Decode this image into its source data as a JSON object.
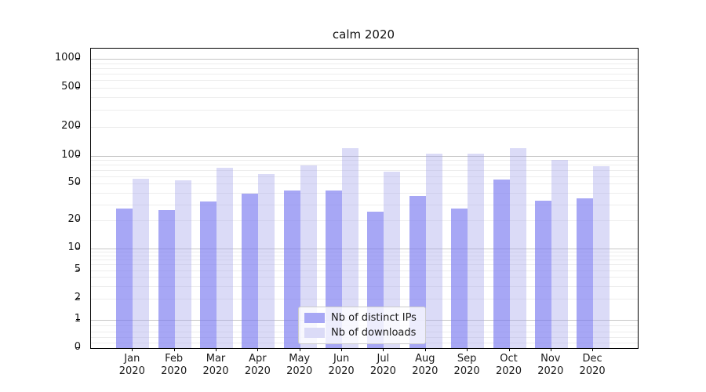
{
  "chart_data": {
    "type": "bar",
    "title": "calm 2020",
    "yscale": "symlog",
    "grid": true,
    "legend_position": "bottom-center",
    "categories": [
      "Jan",
      "Feb",
      "Mar",
      "Apr",
      "May",
      "Jun",
      "Jul",
      "Aug",
      "Sep",
      "Oct",
      "Nov",
      "Dec"
    ],
    "year_label": "2020",
    "series": [
      {
        "name": "Nb of distinct IPs",
        "color": "#a7a7f5",
        "values": [
          27,
          26,
          32,
          39,
          42,
          42,
          25,
          37,
          27,
          55,
          33,
          35
        ]
      },
      {
        "name": "Nb of downloads",
        "color": "#dbdbf7",
        "values": [
          57,
          54,
          75,
          63,
          79,
          119,
          67,
          105,
          106,
          121,
          91,
          78
        ]
      }
    ],
    "yticks": [
      0,
      1,
      2,
      5,
      10,
      20,
      50,
      100,
      200,
      500,
      1000
    ],
    "ytick_labels": [
      "0",
      "1",
      "2",
      "5",
      "10",
      "20",
      "50",
      "100",
      "200",
      "500",
      "1000"
    ],
    "ylim": [
      0,
      1280
    ]
  }
}
